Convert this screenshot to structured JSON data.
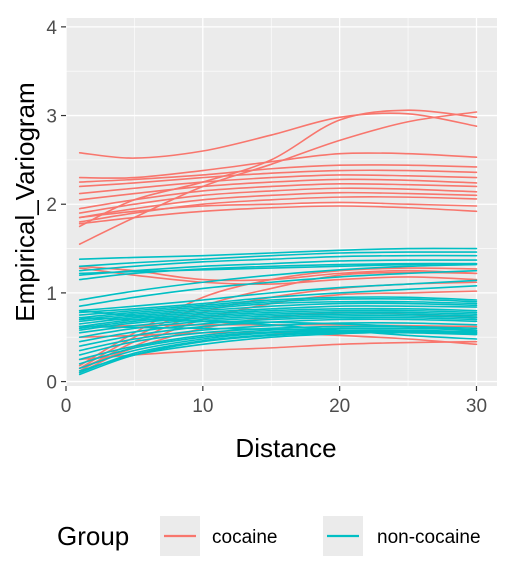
{
  "chart_data": {
    "type": "line",
    "title": "",
    "xlabel": "Distance",
    "ylabel": "Empirical_Variogram",
    "xlim": [
      0,
      31.5
    ],
    "ylim": [
      -0.05,
      4.1
    ],
    "xticks": [
      0,
      10,
      20,
      30
    ],
    "yticks": [
      0,
      1,
      2,
      3,
      4
    ],
    "xtick_labels": [
      "0",
      "10",
      "20",
      "30"
    ],
    "ytick_labels": [
      "0",
      "1",
      "2",
      "3",
      "4"
    ],
    "grid": true,
    "legend": {
      "title": "Group",
      "position": "bottom",
      "entries": [
        "cocaine",
        "non-cocaine"
      ]
    },
    "colors": {
      "cocaine": "#F8766D",
      "non-cocaine": "#00BFC4",
      "panel": "#EBEBEB",
      "grid": "#FFFFFF"
    },
    "x_knots": [
      1,
      5,
      10,
      15,
      20,
      25,
      30
    ],
    "groups": [
      {
        "name": "cocaine",
        "curves": [
          [
            2.58,
            2.52,
            2.6,
            2.78,
            2.98,
            3.02,
            2.88
          ],
          [
            1.55,
            1.85,
            2.2,
            2.45,
            2.72,
            2.93,
            3.04
          ],
          [
            1.75,
            2.05,
            2.25,
            2.5,
            2.95,
            3.06,
            2.98
          ],
          [
            2.3,
            2.3,
            2.38,
            2.48,
            2.57,
            2.57,
            2.53
          ],
          [
            2.25,
            2.28,
            2.33,
            2.4,
            2.44,
            2.44,
            2.42
          ],
          [
            2.2,
            2.24,
            2.3,
            2.35,
            2.38,
            2.38,
            2.36
          ],
          [
            2.12,
            2.18,
            2.25,
            2.3,
            2.33,
            2.32,
            2.3
          ],
          [
            2.05,
            2.12,
            2.2,
            2.25,
            2.28,
            2.27,
            2.24
          ],
          [
            1.95,
            2.05,
            2.15,
            2.2,
            2.23,
            2.22,
            2.2
          ],
          [
            1.9,
            2.0,
            2.1,
            2.15,
            2.18,
            2.17,
            2.14
          ],
          [
            1.85,
            1.95,
            2.05,
            2.1,
            2.13,
            2.12,
            2.1
          ],
          [
            1.8,
            1.9,
            2.0,
            2.05,
            2.08,
            2.08,
            2.06
          ],
          [
            1.85,
            1.92,
            1.98,
            2.0,
            2.02,
            2.0,
            1.98
          ],
          [
            1.78,
            1.85,
            1.92,
            1.96,
            1.98,
            1.96,
            1.92
          ],
          [
            1.3,
            1.25,
            1.15,
            1.15,
            1.22,
            1.25,
            1.22
          ],
          [
            1.28,
            1.2,
            1.12,
            1.1,
            1.15,
            1.18,
            1.15
          ],
          [
            0.18,
            0.55,
            0.95,
            1.15,
            1.25,
            1.28,
            1.27
          ],
          [
            0.15,
            0.5,
            0.85,
            1.05,
            1.2,
            1.23,
            1.22
          ],
          [
            0.12,
            0.45,
            0.78,
            0.95,
            1.05,
            1.1,
            1.12
          ],
          [
            0.1,
            0.4,
            0.7,
            0.88,
            0.98,
            1.0,
            1.02
          ],
          [
            0.15,
            0.38,
            0.6,
            0.72,
            0.78,
            0.76,
            0.72
          ],
          [
            0.25,
            0.3,
            0.35,
            0.38,
            0.42,
            0.44,
            0.45
          ],
          [
            0.5,
            0.52,
            0.55,
            0.55,
            0.52,
            0.48,
            0.42
          ],
          [
            0.62,
            0.63,
            0.64,
            0.64,
            0.64,
            0.63,
            0.62
          ]
        ]
      },
      {
        "name": "non-cocaine",
        "curves": [
          [
            1.38,
            1.4,
            1.42,
            1.45,
            1.48,
            1.5,
            1.5
          ],
          [
            1.3,
            1.34,
            1.38,
            1.42,
            1.45,
            1.46,
            1.46
          ],
          [
            1.25,
            1.3,
            1.35,
            1.38,
            1.41,
            1.42,
            1.42
          ],
          [
            1.2,
            1.25,
            1.3,
            1.33,
            1.36,
            1.37,
            1.37
          ],
          [
            1.15,
            1.22,
            1.27,
            1.3,
            1.32,
            1.33,
            1.33
          ],
          [
            1.22,
            1.24,
            1.26,
            1.28,
            1.3,
            1.32,
            1.33
          ],
          [
            0.92,
            1.02,
            1.12,
            1.2,
            1.26,
            1.3,
            1.32
          ],
          [
            0.85,
            0.95,
            1.05,
            1.12,
            1.18,
            1.22,
            1.25
          ],
          [
            0.8,
            0.85,
            0.92,
            1.0,
            1.06,
            1.1,
            1.14
          ],
          [
            0.78,
            0.82,
            0.88,
            0.95,
            1.0,
            1.04,
            1.08
          ],
          [
            0.75,
            0.8,
            0.86,
            0.92,
            0.95,
            0.95,
            0.92
          ],
          [
            0.72,
            0.78,
            0.84,
            0.9,
            0.93,
            0.93,
            0.9
          ],
          [
            0.7,
            0.76,
            0.82,
            0.88,
            0.9,
            0.9,
            0.88
          ],
          [
            0.68,
            0.74,
            0.8,
            0.85,
            0.88,
            0.88,
            0.86
          ],
          [
            0.65,
            0.72,
            0.78,
            0.82,
            0.85,
            0.85,
            0.84
          ],
          [
            0.62,
            0.7,
            0.76,
            0.8,
            0.82,
            0.82,
            0.8
          ],
          [
            0.6,
            0.68,
            0.74,
            0.78,
            0.8,
            0.8,
            0.78
          ],
          [
            0.58,
            0.66,
            0.72,
            0.76,
            0.78,
            0.78,
            0.76
          ],
          [
            0.55,
            0.63,
            0.7,
            0.74,
            0.76,
            0.76,
            0.74
          ],
          [
            0.5,
            0.6,
            0.68,
            0.72,
            0.74,
            0.74,
            0.72
          ],
          [
            0.45,
            0.56,
            0.65,
            0.7,
            0.72,
            0.72,
            0.7
          ],
          [
            0.4,
            0.52,
            0.62,
            0.67,
            0.7,
            0.7,
            0.68
          ],
          [
            0.35,
            0.48,
            0.58,
            0.63,
            0.66,
            0.66,
            0.64
          ],
          [
            0.3,
            0.45,
            0.55,
            0.6,
            0.62,
            0.62,
            0.6
          ],
          [
            0.25,
            0.4,
            0.52,
            0.58,
            0.6,
            0.6,
            0.58
          ],
          [
            0.2,
            0.38,
            0.5,
            0.56,
            0.58,
            0.58,
            0.56
          ],
          [
            0.15,
            0.35,
            0.48,
            0.55,
            0.57,
            0.57,
            0.55
          ],
          [
            0.1,
            0.32,
            0.46,
            0.53,
            0.56,
            0.56,
            0.54
          ],
          [
            0.08,
            0.3,
            0.45,
            0.52,
            0.55,
            0.55,
            0.53
          ],
          [
            0.12,
            0.3,
            0.42,
            0.5,
            0.54,
            0.56,
            0.57
          ],
          [
            0.72,
            0.7,
            0.68,
            0.67,
            0.65,
            0.62,
            0.58
          ],
          [
            0.8,
            0.74,
            0.68,
            0.64,
            0.58,
            0.52,
            0.48
          ],
          [
            0.62,
            0.61,
            0.6,
            0.59,
            0.58,
            0.57,
            0.55
          ]
        ]
      }
    ]
  }
}
